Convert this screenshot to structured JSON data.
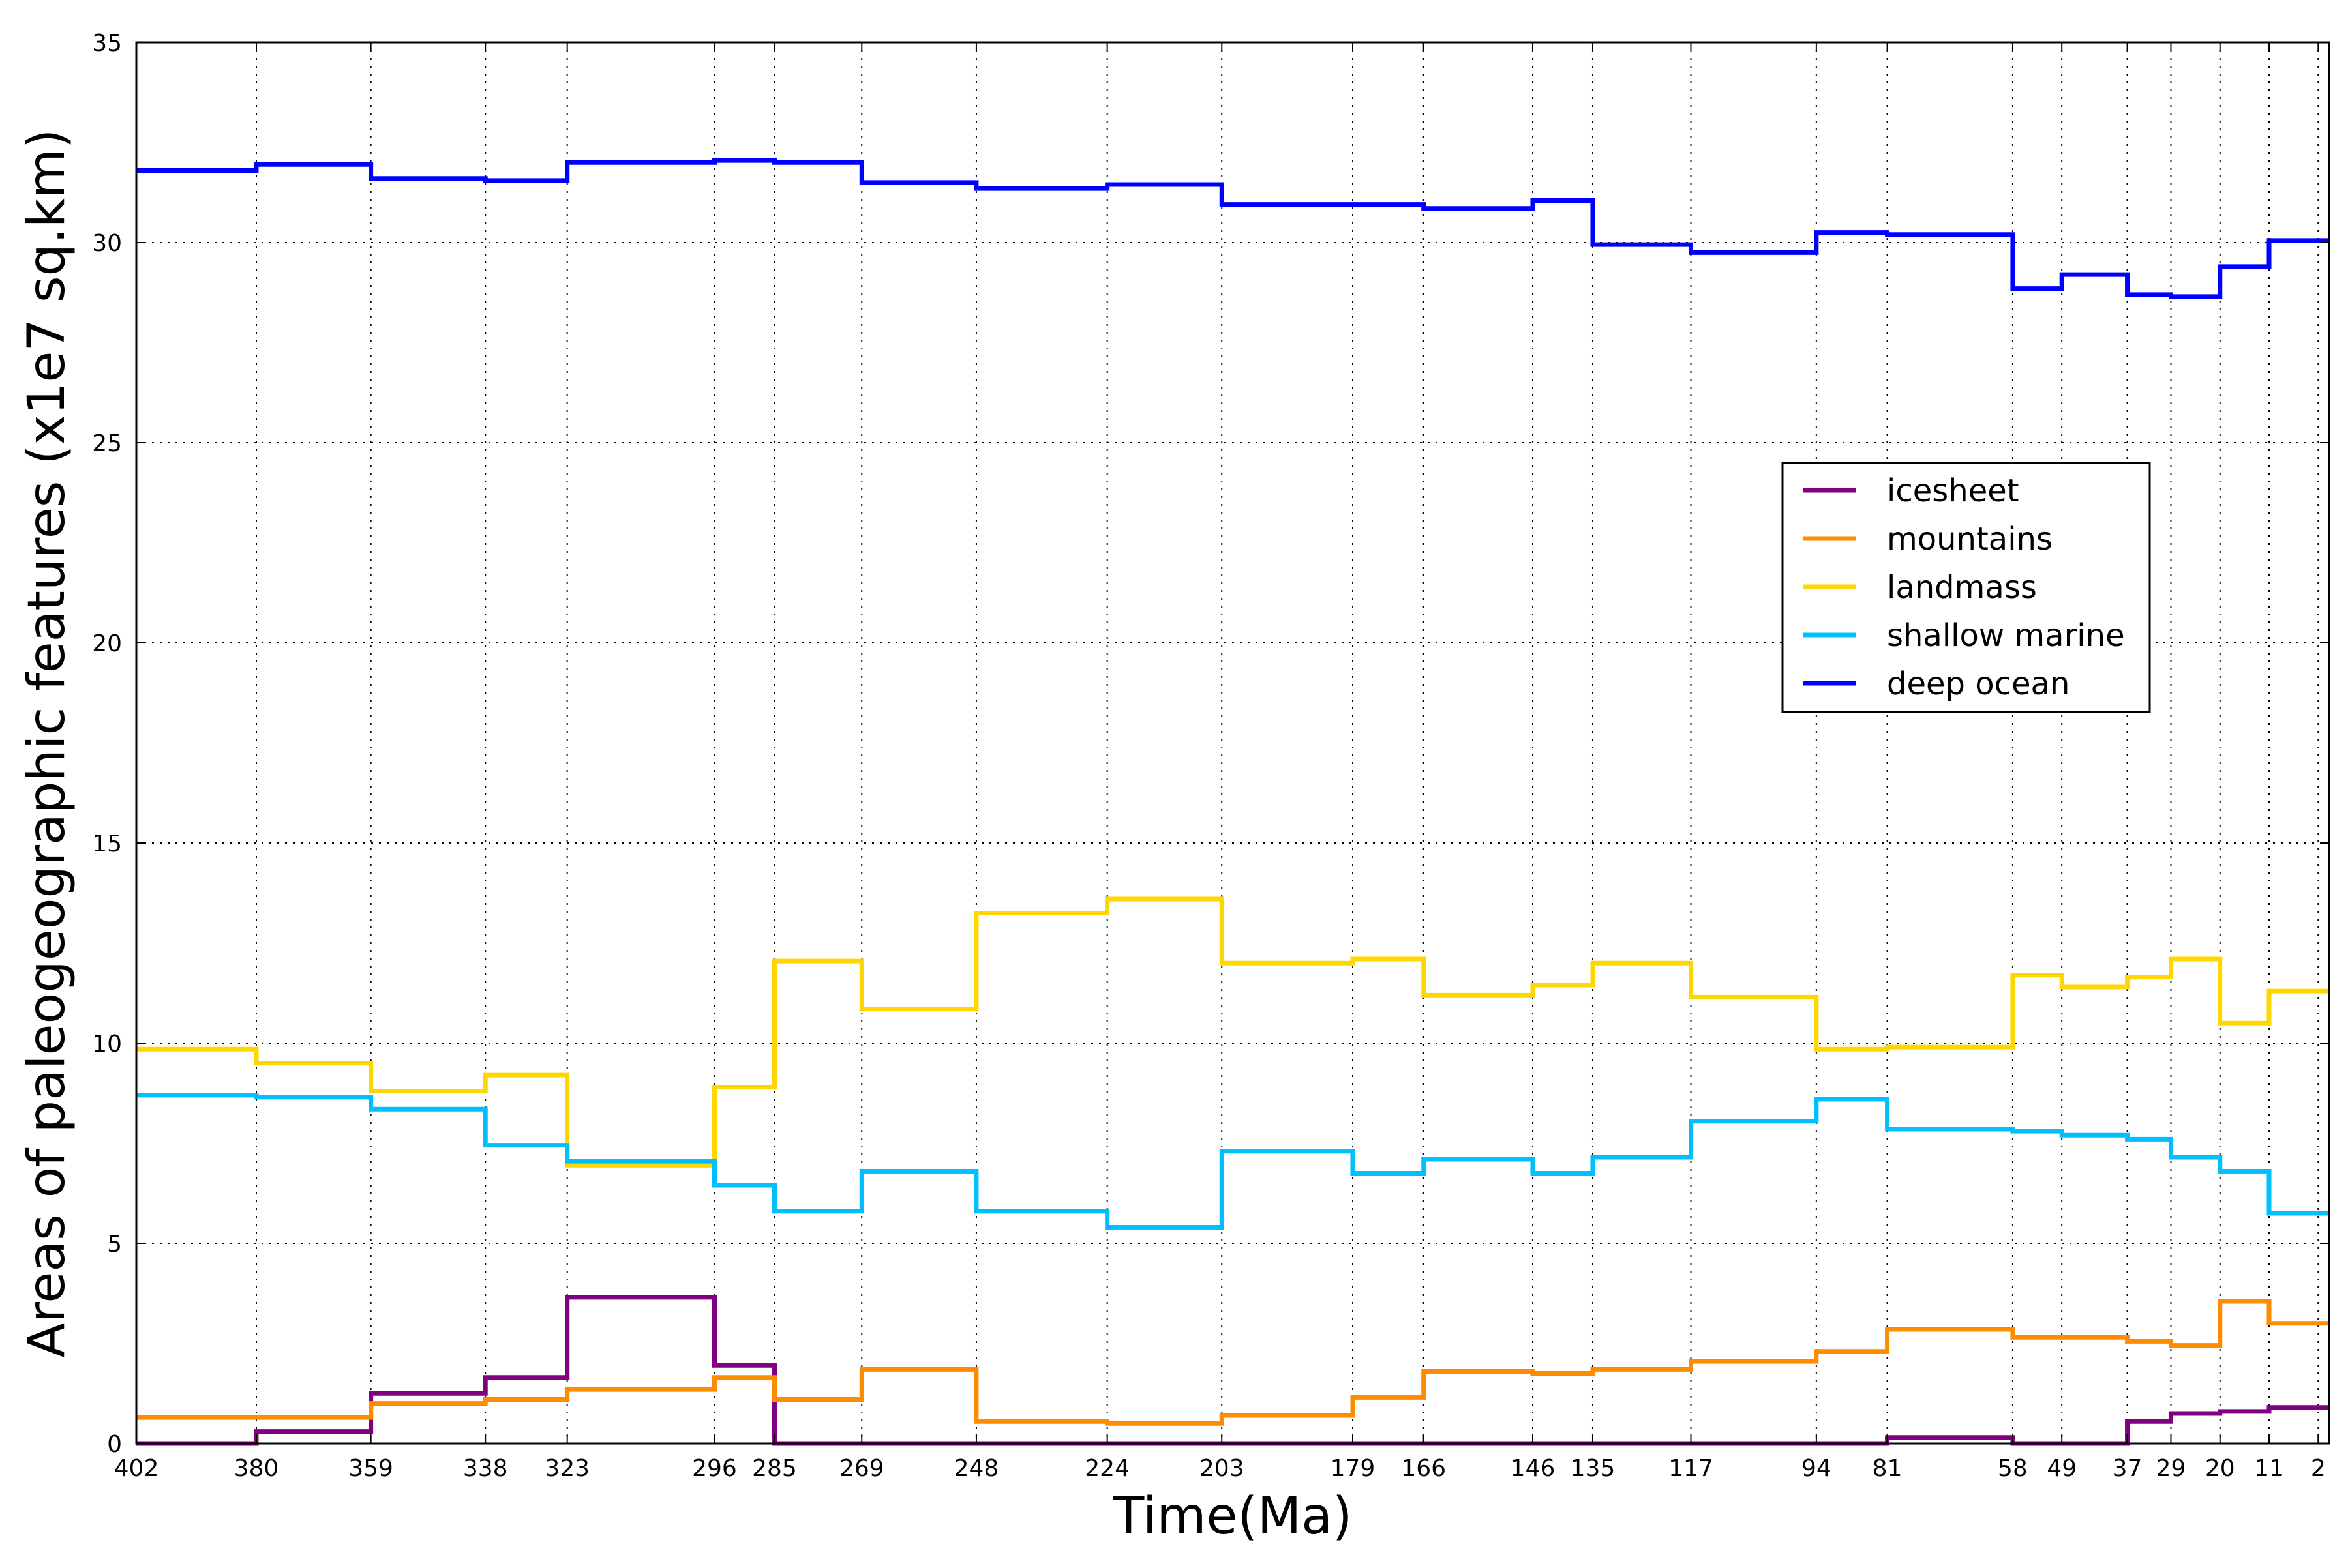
{
  "chart_data": {
    "type": "line",
    "step": true,
    "xlabel": "Time(Ma)",
    "ylabel": "Areas of paleogeographic features (x1e7 sq.km)",
    "xlim": [
      402,
      0
    ],
    "ylim": [
      0,
      35
    ],
    "grid": true,
    "grid_style": "dotted",
    "legend_position": "right, upper-middle",
    "x_ticks": [
      402,
      380,
      359,
      338,
      323,
      296,
      285,
      269,
      248,
      224,
      203,
      179,
      166,
      146,
      135,
      117,
      94,
      81,
      58,
      49,
      37,
      29,
      20,
      11,
      2
    ],
    "y_ticks": [
      0,
      5,
      10,
      15,
      20,
      25,
      30,
      35
    ],
    "x": [
      402,
      380,
      359,
      338,
      323,
      296,
      285,
      269,
      248,
      224,
      203,
      179,
      166,
      146,
      135,
      117,
      94,
      81,
      58,
      49,
      37,
      29,
      20,
      11,
      2
    ],
    "series": [
      {
        "name": "icesheet",
        "color": "#800080",
        "values": [
          0,
          0.3,
          1.25,
          1.65,
          3.65,
          1.95,
          0,
          0,
          0,
          0,
          0,
          0,
          0,
          0,
          0,
          0,
          0,
          0.15,
          0,
          0,
          0.55,
          0.75,
          0.8,
          0.9,
          0.9
        ]
      },
      {
        "name": "mountains",
        "color": "#ff8c00",
        "values": [
          0.65,
          0.65,
          1.0,
          1.1,
          1.35,
          1.65,
          1.1,
          1.85,
          0.55,
          0.5,
          0.7,
          1.15,
          1.8,
          1.75,
          1.85,
          2.05,
          2.3,
          2.85,
          2.65,
          2.65,
          2.55,
          2.45,
          3.55,
          3.0,
          3.0
        ]
      },
      {
        "name": "landmass",
        "color": "#ffd700",
        "values": [
          9.85,
          9.5,
          8.8,
          9.2,
          6.95,
          8.9,
          12.05,
          10.85,
          13.25,
          13.6,
          12.0,
          12.1,
          11.2,
          11.45,
          12.0,
          11.15,
          9.85,
          9.9,
          11.7,
          11.4,
          11.65,
          12.1,
          10.5,
          11.3,
          11.3
        ]
      },
      {
        "name": "shallow marine",
        "color": "#00bfff",
        "values": [
          8.7,
          8.65,
          8.35,
          7.45,
          7.05,
          6.45,
          5.8,
          6.8,
          5.8,
          5.4,
          7.3,
          6.75,
          7.1,
          6.75,
          7.15,
          8.05,
          8.6,
          7.85,
          7.8,
          7.7,
          7.6,
          7.15,
          6.8,
          5.75,
          5.75
        ]
      },
      {
        "name": "deep ocean",
        "color": "#0000ff",
        "values": [
          31.8,
          31.95,
          31.6,
          31.55,
          32.0,
          32.05,
          32.0,
          31.5,
          31.35,
          31.45,
          30.95,
          30.95,
          30.85,
          31.05,
          29.95,
          29.75,
          30.25,
          30.2,
          28.85,
          29.2,
          28.7,
          28.65,
          29.4,
          30.05,
          30.05
        ]
      }
    ]
  }
}
